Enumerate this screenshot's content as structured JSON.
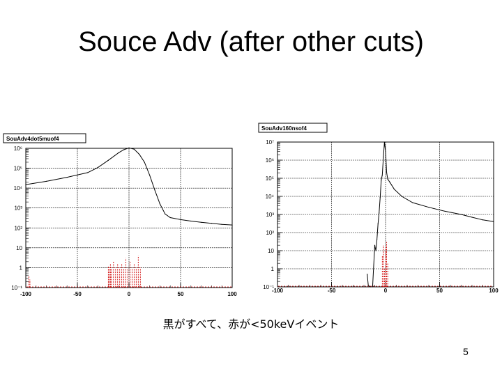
{
  "slide": {
    "title": "Souce Adv (after other cuts)",
    "caption": "黒がすべて、赤が<50keVイベント",
    "page_number": "5"
  },
  "colors": {
    "all_events": "#000000",
    "low_energy": "#d00000",
    "grid": "#000000"
  },
  "chart_data": [
    {
      "type": "line",
      "title": "SouAdv4dot5muof4",
      "y_scale": "log",
      "xlim": [
        -100,
        100
      ],
      "ylim": [
        0.1,
        1000000
      ],
      "x_ticks": [
        -100,
        -50,
        0,
        50,
        100
      ],
      "y_ticks": [
        "10⁻¹",
        "1",
        "10",
        "10²",
        "10³",
        "10⁴",
        "10⁵",
        "10⁶"
      ],
      "grid": true,
      "series": [
        {
          "x": [
            -100,
            -80,
            -60,
            -40,
            -30,
            -20,
            -10,
            -5,
            0,
            5,
            10,
            15,
            20,
            25,
            30,
            35,
            40,
            50,
            60,
            70,
            80,
            90,
            100
          ],
          "y": [
            15000,
            22000,
            35000,
            60000,
            110000,
            250000,
            600000,
            850000,
            1050000,
            900000,
            500000,
            200000,
            45000,
            8000,
            1600,
            500,
            330,
            260,
            220,
            190,
            170,
            150,
            140
          ]
        },
        {
          "x": [
            -97,
            -96,
            -20,
            -19,
            -18,
            -17,
            -15,
            -13,
            -11,
            -9,
            -7,
            -5,
            -3,
            -1,
            1,
            3,
            5,
            7,
            9,
            11
          ],
          "y": [
            0.4,
            0.25,
            1.2,
            1,
            1.5,
            1,
            2,
            1,
            1.5,
            1,
            1.5,
            1,
            3,
            1,
            2,
            1,
            1.5,
            1,
            4,
            1
          ]
        }
      ]
    },
    {
      "type": "line",
      "title": "SouAdv160nsof4",
      "y_scale": "log",
      "xlim": [
        -100,
        100
      ],
      "ylim": [
        0.1,
        10000000
      ],
      "x_ticks": [
        -100,
        -50,
        0,
        50,
        100
      ],
      "y_ticks": [
        "10⁻¹",
        "1",
        "10",
        "10²",
        "10³",
        "10⁴",
        "10⁵",
        "10⁶",
        "10⁷"
      ],
      "grid": true,
      "series": [
        {
          "x": [
            -17,
            -16,
            -14,
            -12,
            -10,
            -9,
            -8,
            -7,
            -6,
            -5,
            -4,
            -3,
            -2,
            -1,
            0,
            1,
            2,
            4,
            8,
            15,
            25,
            40,
            55,
            70,
            80,
            90,
            100
          ],
          "y": [
            0.5,
            0.12,
            0.1,
            0.1,
            20,
            10,
            40,
            300,
            1200,
            9000,
            80000,
            150000,
            1500000,
            10000000,
            3000000,
            200000,
            90000,
            60000,
            25000,
            10000,
            4500,
            2500,
            1500,
            1000,
            700,
            500,
            400
          ]
        },
        {
          "x": [
            -3,
            -2,
            -1,
            0,
            1,
            2
          ],
          "y": [
            5,
            20,
            1,
            15,
            30,
            2
          ]
        }
      ]
    }
  ]
}
